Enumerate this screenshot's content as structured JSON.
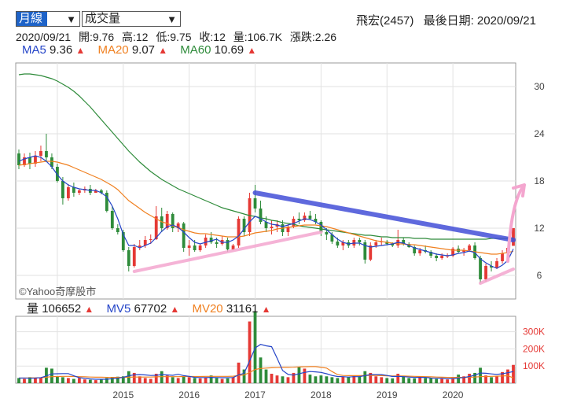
{
  "header": {
    "period_select": "月線",
    "indicator_select": "成交量",
    "stock": "飛宏(2457)",
    "last_date_label": "最後日期: 2020/09/21"
  },
  "ohlc": {
    "date": "2020/09/21",
    "open": "開:9.76",
    "high": "高:12",
    "low": "低:9.75",
    "close": "收:12",
    "volume": "量:106.7K",
    "change": "漲跌:2.26"
  },
  "ma_legend": [
    {
      "label": "MA5",
      "value": "9.36",
      "color": "#2545c8"
    },
    {
      "label": "MA20",
      "value": "9.07",
      "color": "#f08020"
    },
    {
      "label": "MA60",
      "value": "10.69",
      "color": "#2e8b3a"
    }
  ],
  "vol_legend": [
    {
      "label": "量",
      "value": "106652",
      "color": "#222222"
    },
    {
      "label": "MV5",
      "value": "67702",
      "color": "#2545c8"
    },
    {
      "label": "MV20",
      "value": "31161",
      "color": "#f08020"
    }
  ],
  "copyright": "©Yahoo奇摩股市",
  "chart_data": [
    {
      "type": "candlestick",
      "y_ticks": [
        "30",
        "24",
        "18",
        "12",
        "6"
      ],
      "ylim": [
        3,
        33
      ],
      "x_ticks": [
        "2015",
        "2016",
        "2017",
        "2018",
        "2019",
        "2020"
      ],
      "candles": [
        [
          21.5,
          22.0,
          19.5,
          20.0
        ],
        [
          20.0,
          21.5,
          19.8,
          21.0
        ],
        [
          21.0,
          21.6,
          19.5,
          20.2
        ],
        [
          20.2,
          21.8,
          19.8,
          21.2
        ],
        [
          21.2,
          22.5,
          20.5,
          21.8
        ],
        [
          21.8,
          24.0,
          20.5,
          21.0
        ],
        [
          21.0,
          21.5,
          19.5,
          19.8
        ],
        [
          19.8,
          20.2,
          17.8,
          18.0
        ],
        [
          18.0,
          18.5,
          15.0,
          15.8
        ],
        [
          15.8,
          17.6,
          15.5,
          17.2
        ],
        [
          17.2,
          17.8,
          16.0,
          16.5
        ],
        [
          16.5,
          17.0,
          16.2,
          16.8
        ],
        [
          16.8,
          17.3,
          16.5,
          17.0
        ],
        [
          17.0,
          17.5,
          16.2,
          16.5
        ],
        [
          16.5,
          17.0,
          16.6,
          16.8
        ],
        [
          16.8,
          17.0,
          16.3,
          16.5
        ],
        [
          16.5,
          16.8,
          14.0,
          14.2
        ],
        [
          14.2,
          14.8,
          11.8,
          12.0
        ],
        [
          12.0,
          12.5,
          11.2,
          11.5
        ],
        [
          11.5,
          11.8,
          9.0,
          9.2
        ],
        [
          9.2,
          9.6,
          6.5,
          7.2
        ],
        [
          7.2,
          10.0,
          7.0,
          9.6
        ],
        [
          9.6,
          10.5,
          9.2,
          9.8
        ],
        [
          9.8,
          11.0,
          9.5,
          10.5
        ],
        [
          10.5,
          11.2,
          10.0,
          10.6
        ],
        [
          10.6,
          14.8,
          10.5,
          13.5
        ],
        [
          13.5,
          14.6,
          11.5,
          12.0
        ],
        [
          12.0,
          14.2,
          11.8,
          13.8
        ],
        [
          13.8,
          14.0,
          11.5,
          12.0
        ],
        [
          12.0,
          12.8,
          11.5,
          12.6
        ],
        [
          12.6,
          12.8,
          9.0,
          9.5
        ],
        [
          9.5,
          10.5,
          8.5,
          9.8
        ],
        [
          9.8,
          10.5,
          9.0,
          9.2
        ],
        [
          9.2,
          10.0,
          9.0,
          9.8
        ],
        [
          9.8,
          11.2,
          9.5,
          10.8
        ],
        [
          10.8,
          11.5,
          10.0,
          10.2
        ],
        [
          10.2,
          10.8,
          9.5,
          10.0
        ],
        [
          10.0,
          11.0,
          9.8,
          10.5
        ],
        [
          10.5,
          10.8,
          9.0,
          9.3
        ],
        [
          9.3,
          10.0,
          9.2,
          9.8
        ],
        [
          9.8,
          13.5,
          9.5,
          13.2
        ],
        [
          13.2,
          13.5,
          11.0,
          11.5
        ],
        [
          11.5,
          16.5,
          11.0,
          15.8
        ],
        [
          15.8,
          17.5,
          14.0,
          14.5
        ],
        [
          14.5,
          15.5,
          12.5,
          12.8
        ],
        [
          12.8,
          13.5,
          11.5,
          12.0
        ],
        [
          12.0,
          13.0,
          11.2,
          12.2
        ],
        [
          12.2,
          13.0,
          11.5,
          12.5
        ],
        [
          12.5,
          13.0,
          11.0,
          11.5
        ],
        [
          11.5,
          12.5,
          11.0,
          12.2
        ],
        [
          12.2,
          13.5,
          12.0,
          13.2
        ],
        [
          13.2,
          14.0,
          12.5,
          13.0
        ],
        [
          13.0,
          14.0,
          12.8,
          13.6
        ],
        [
          13.6,
          14.2,
          13.0,
          13.2
        ],
        [
          13.2,
          13.8,
          12.5,
          12.8
        ],
        [
          12.8,
          13.0,
          11.0,
          11.5
        ],
        [
          11.5,
          12.0,
          10.5,
          11.2
        ],
        [
          11.2,
          11.5,
          10.0,
          10.3
        ],
        [
          10.3,
          10.8,
          9.5,
          9.8
        ],
        [
          9.8,
          10.5,
          9.2,
          10.2
        ],
        [
          10.2,
          10.5,
          9.5,
          9.8
        ],
        [
          9.8,
          10.8,
          9.5,
          10.5
        ],
        [
          10.5,
          10.8,
          9.8,
          10.2
        ],
        [
          10.2,
          10.5,
          7.5,
          8.0
        ],
        [
          8.0,
          10.2,
          7.8,
          9.8
        ],
        [
          9.8,
          10.5,
          9.5,
          10.2
        ],
        [
          10.2,
          10.8,
          9.8,
          10.3
        ],
        [
          10.3,
          10.5,
          9.8,
          10.0
        ],
        [
          10.0,
          10.2,
          9.6,
          9.8
        ],
        [
          9.8,
          11.8,
          9.5,
          10.5
        ],
        [
          10.5,
          10.8,
          9.8,
          10.0
        ],
        [
          10.0,
          10.2,
          9.5,
          9.6
        ],
        [
          9.6,
          9.8,
          8.5,
          8.8
        ],
        [
          8.8,
          9.5,
          8.5,
          9.2
        ],
        [
          9.2,
          9.8,
          8.8,
          9.0
        ],
        [
          9.0,
          9.2,
          8.2,
          8.5
        ],
        [
          8.5,
          8.8,
          7.8,
          8.2
        ],
        [
          8.2,
          8.8,
          8.0,
          8.5
        ],
        [
          8.5,
          8.8,
          8.2,
          8.5
        ],
        [
          8.5,
          9.6,
          8.3,
          9.4
        ],
        [
          9.4,
          9.8,
          8.8,
          9.0
        ],
        [
          9.0,
          9.5,
          8.5,
          9.2
        ],
        [
          9.2,
          10.0,
          9.0,
          9.8
        ],
        [
          9.8,
          10.2,
          8.0,
          8.2
        ],
        [
          8.2,
          8.5,
          5.0,
          5.5
        ],
        [
          5.5,
          7.5,
          5.2,
          7.2
        ],
        [
          7.2,
          7.8,
          6.5,
          7.0
        ],
        [
          7.0,
          8.2,
          6.8,
          7.8
        ],
        [
          7.8,
          9.2,
          7.5,
          8.8
        ],
        [
          8.8,
          9.8,
          8.5,
          9.5
        ],
        [
          9.76,
          12.0,
          9.75,
          12.0
        ]
      ],
      "ma5": [
        20.5,
        20.8,
        21.0,
        21.2,
        21.0,
        20.5,
        19.8,
        18.8,
        18.0,
        17.5,
        17.2,
        17.0,
        16.9,
        16.8,
        16.8,
        16.5,
        16.0,
        14.8,
        13.2,
        11.2,
        9.8,
        9.8,
        9.5,
        9.8,
        10.1,
        10.8,
        11.6,
        12.2,
        12.4,
        12.1,
        11.5,
        10.8,
        10.2,
        10.0,
        10.2,
        10.4,
        10.6,
        10.2,
        10.2,
        10.5,
        11.0,
        11.9,
        12.8,
        13.5,
        13.2,
        12.8,
        12.5,
        12.4,
        12.2,
        12.4,
        12.6,
        12.9,
        13.2,
        13.1,
        12.8,
        12.4,
        11.8,
        11.2,
        10.6,
        10.2,
        10.0,
        10.1,
        10.1,
        9.8,
        9.6,
        9.7,
        9.8,
        9.9,
        10.0,
        10.2,
        10.1,
        9.8,
        9.5,
        9.3,
        9.1,
        8.9,
        8.7,
        8.6,
        8.5,
        8.6,
        8.8,
        8.9,
        9.1,
        8.9,
        8.1,
        7.6,
        7.2,
        6.9,
        7.3,
        7.9,
        9.36
      ],
      "ma20": [
        20.0,
        20.1,
        20.2,
        20.3,
        20.4,
        20.5,
        20.5,
        20.4,
        20.2,
        20.0,
        19.7,
        19.4,
        19.1,
        18.8,
        18.5,
        18.2,
        17.8,
        17.4,
        16.9,
        16.2,
        15.5,
        15.0,
        14.5,
        14.0,
        13.6,
        13.2,
        12.8,
        12.6,
        12.3,
        12.1,
        11.8,
        11.6,
        11.4,
        11.3,
        11.3,
        11.2,
        11.1,
        11.0,
        10.9,
        10.9,
        10.9,
        11.0,
        11.2,
        11.4,
        11.5,
        11.6,
        11.7,
        11.9,
        12.0,
        12.1,
        12.2,
        12.3,
        12.4,
        12.4,
        12.4,
        12.3,
        12.2,
        12.0,
        11.8,
        11.6,
        11.4,
        11.2,
        11.0,
        10.8,
        10.6,
        10.4,
        10.3,
        10.2,
        10.1,
        10.0,
        10.0,
        9.9,
        9.9,
        9.8,
        9.7,
        9.6,
        9.5,
        9.4,
        9.3,
        9.2,
        9.2,
        9.2,
        9.1,
        9.0,
        8.9,
        8.8,
        8.7,
        8.7,
        8.8,
        8.9,
        9.07
      ],
      "ma60": [
        31.5,
        31.6,
        31.6,
        31.5,
        31.4,
        31.2,
        31.0,
        30.7,
        30.3,
        29.9,
        29.4,
        28.8,
        28.1,
        27.4,
        26.6,
        25.8,
        25.0,
        24.2,
        23.4,
        22.6,
        21.8,
        21.1,
        20.4,
        19.8,
        19.2,
        18.7,
        18.2,
        17.8,
        17.4,
        17.0,
        16.7,
        16.4,
        16.1,
        15.8,
        15.5,
        15.2,
        14.9,
        14.6,
        14.4,
        14.2,
        14.0,
        13.8,
        13.6,
        13.5,
        13.3,
        13.2,
        13.0,
        12.9,
        12.7,
        12.6,
        12.5,
        12.3,
        12.2,
        12.1,
        12.0,
        11.9,
        11.8,
        11.7,
        11.6,
        11.5,
        11.4,
        11.3,
        11.2,
        11.1,
        11.1,
        11.0,
        10.9,
        10.9,
        10.8,
        10.8,
        10.8,
        10.8,
        10.7,
        10.7,
        10.7,
        10.6,
        10.6,
        10.6,
        10.6,
        10.6,
        10.6,
        10.6,
        10.6,
        10.6,
        10.6,
        10.6,
        10.7,
        10.7,
        10.7,
        10.7,
        10.69
      ],
      "annotations": [
        {
          "type": "trendline",
          "color": "#4450d8",
          "from": [
            43,
            16.5
          ],
          "to": [
            90,
            10.5
          ]
        },
        {
          "type": "trendline",
          "color": "#f4a6cf",
          "from": [
            21,
            6.5
          ],
          "to": [
            55,
            11.5
          ]
        },
        {
          "type": "trendline",
          "color": "#f4a6cf",
          "from": [
            84,
            5.0
          ],
          "to": [
            90,
            6.8
          ]
        },
        {
          "type": "arrow",
          "color": "#f4a6cf",
          "from": [
            89,
            7.8
          ],
          "to": [
            92,
            17.5
          ]
        }
      ]
    },
    {
      "type": "bar",
      "y_ticks": [
        "300K",
        "200K",
        "100K"
      ],
      "ylim": [
        0,
        390
      ],
      "volume": [
        30,
        25,
        35,
        28,
        30,
        90,
        85,
        40,
        35,
        30,
        25,
        30,
        22,
        20,
        18,
        25,
        30,
        35,
        38,
        40,
        70,
        60,
        40,
        30,
        25,
        55,
        70,
        45,
        35,
        30,
        40,
        35,
        30,
        28,
        32,
        45,
        30,
        25,
        28,
        35,
        120,
        80,
        360,
        420,
        150,
        80,
        55,
        45,
        40,
        35,
        60,
        95,
        85,
        50,
        40,
        45,
        40,
        35,
        30,
        38,
        35,
        45,
        40,
        70,
        60,
        40,
        35,
        30,
        28,
        55,
        40,
        30,
        28,
        35,
        30,
        28,
        25,
        25,
        22,
        30,
        50,
        40,
        55,
        60,
        90,
        45,
        35,
        40,
        65,
        80,
        106.7
      ],
      "mv5": [
        30,
        30,
        29,
        30,
        32,
        42,
        54,
        55,
        56,
        56,
        43,
        32,
        28,
        25,
        23,
        23,
        23,
        26,
        29,
        34,
        43,
        49,
        50,
        48,
        45,
        46,
        50,
        48,
        46,
        52,
        44,
        40,
        34,
        33,
        33,
        34,
        33,
        32,
        32,
        33,
        48,
        58,
        129,
        205,
        226,
        218,
        213,
        146,
        74,
        51,
        47,
        55,
        63,
        68,
        66,
        63,
        55,
        45,
        39,
        38,
        36,
        38,
        38,
        44,
        50,
        50,
        50,
        45,
        39,
        40,
        38,
        36,
        34,
        34,
        34,
        30,
        29,
        28,
        26,
        26,
        30,
        33,
        39,
        47,
        59,
        58,
        54,
        51,
        55,
        61,
        67.7
      ],
      "mv20": [
        30,
        30,
        31,
        31,
        32,
        35,
        38,
        39,
        40,
        40,
        39,
        38,
        37,
        36,
        35,
        35,
        34,
        34,
        34,
        34,
        35,
        36,
        36,
        36,
        36,
        37,
        38,
        38,
        38,
        38,
        39,
        39,
        39,
        39,
        40,
        40,
        40,
        40,
        40,
        41,
        45,
        48,
        62,
        80,
        86,
        88,
        90,
        91,
        92,
        92,
        93,
        95,
        96,
        97,
        97,
        92,
        88,
        68,
        50,
        45,
        44,
        44,
        44,
        45,
        45,
        45,
        44,
        43,
        42,
        42,
        42,
        41,
        40,
        39,
        38,
        37,
        36,
        35,
        34,
        34,
        34,
        34,
        35,
        36,
        38,
        39,
        40,
        41,
        42,
        43,
        31.2
      ]
    }
  ]
}
